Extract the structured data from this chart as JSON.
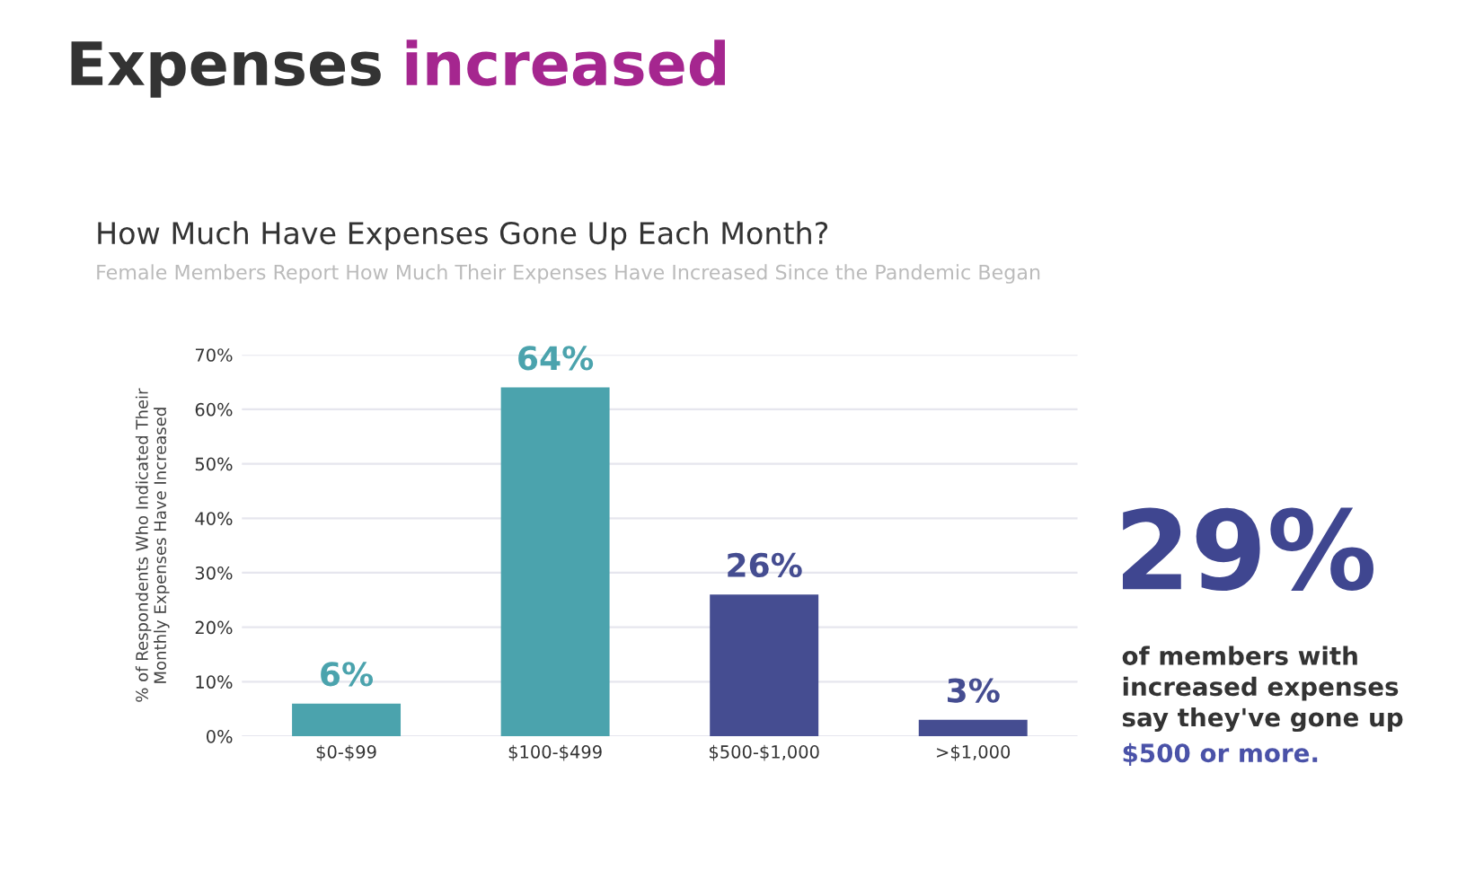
{
  "chart_data": {
    "type": "bar",
    "title": "How Much Have Expenses Gone Up Each Month?",
    "subtitle": "Female Members Report How Much Their Expenses Have Increased Since the Pandemic Began",
    "ylabel": "% of Respondents Who Indicated Their\nMonthly Expenses Have Increased",
    "categories": [
      "$0-$99",
      "$100-$499",
      "$500-$1,000",
      ">$1,000"
    ],
    "values": [
      6,
      64,
      26,
      3
    ],
    "colors": [
      "#4ba3ad",
      "#4ba3ad",
      "#454d91",
      "#454d91"
    ],
    "value_labels": [
      "6%",
      "64%",
      "26%",
      "3%"
    ],
    "ylim": [
      0,
      70
    ],
    "yticks": [
      {
        "value": 0,
        "label": "0%"
      },
      {
        "value": 10,
        "label": "10%"
      },
      {
        "value": 20,
        "label": "20%"
      },
      {
        "value": 30,
        "label": "30%"
      },
      {
        "value": 40,
        "label": "40%"
      },
      {
        "value": 50,
        "label": "50%"
      },
      {
        "value": 60,
        "label": "60%"
      },
      {
        "value": 70,
        "label": "70%"
      }
    ],
    "grid": "y",
    "annotations": [
      "Expenses",
      "increased",
      "29%",
      "of members with\nincreased expenses\nsay they've gone up",
      "$500 or more."
    ]
  }
}
